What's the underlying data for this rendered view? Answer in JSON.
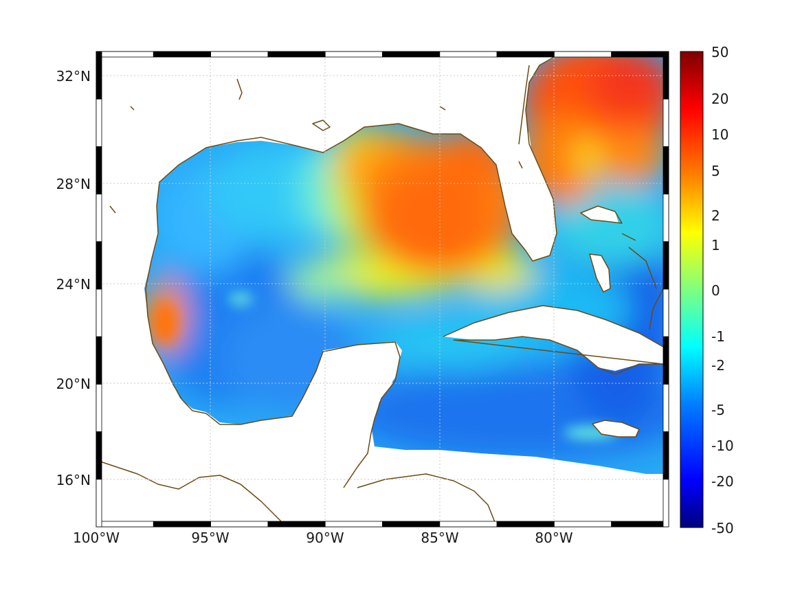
{
  "map": {
    "lat_ticks": [
      "32°N",
      "28°N",
      "24°N",
      "20°N",
      "16°N"
    ],
    "lon_ticks": [
      "100°W",
      "95°W",
      "90°W",
      "85°W",
      "80°W"
    ],
    "extent": {
      "lon_min": -100,
      "lon_max": -75,
      "lat_min": 14.5,
      "lat_max": 33
    },
    "gridlines": true,
    "coast_color": "#6b4a12",
    "frame_style": "black-and-white alternating border"
  },
  "colorbar": {
    "labels": [
      "50",
      "20",
      "10",
      "5",
      "2",
      "1",
      "0",
      "-1",
      "-2",
      "-5",
      "-10",
      "-20",
      "-50"
    ],
    "scale": "symmetric nonlinear (jet colormap)",
    "range": [
      -50,
      50
    ],
    "colormap": [
      "#00007f",
      "#0000ff",
      "#007fff",
      "#00ffff",
      "#7fff7f",
      "#ffff00",
      "#ff7f00",
      "#ff0000",
      "#7f0000"
    ]
  }
}
